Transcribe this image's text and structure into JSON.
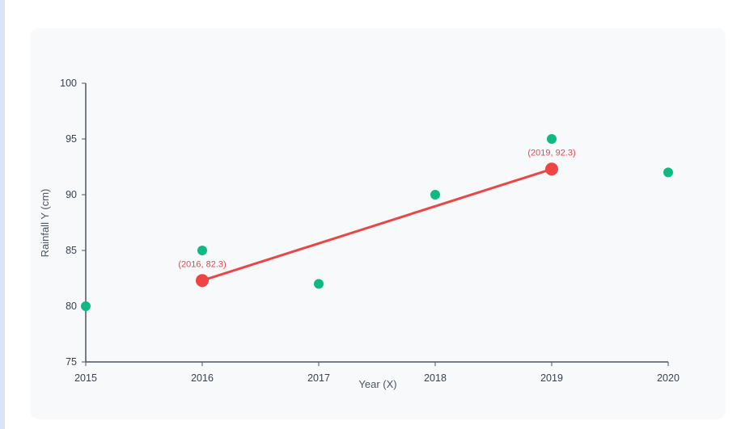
{
  "chart_data": {
    "type": "scatter",
    "title": "",
    "xlabel": "Year (X)",
    "ylabel": "Rainfall Y (cm)",
    "xlim": [
      2015,
      2020
    ],
    "ylim": [
      75,
      100
    ],
    "x_ticks": [
      "2015",
      "2016",
      "2017",
      "2018",
      "2019",
      "2020"
    ],
    "y_ticks": [
      "75",
      "80",
      "85",
      "90",
      "95",
      "100"
    ],
    "grid": false,
    "series": [
      {
        "type": "scatter",
        "color": "#10b981",
        "points": [
          {
            "x": 2015,
            "y": 80
          },
          {
            "x": 2016,
            "y": 85
          },
          {
            "x": 2017,
            "y": 82
          },
          {
            "x": 2018,
            "y": 90
          },
          {
            "x": 2019,
            "y": 95
          },
          {
            "x": 2020,
            "y": 92
          }
        ]
      },
      {
        "type": "line",
        "color": "#ef4444",
        "points": [
          {
            "x": 2016,
            "y": 82.3
          },
          {
            "x": 2019,
            "y": 92.3
          }
        ],
        "labels": [
          "(2016, 82.3)",
          "(2019, 92.3)"
        ]
      }
    ]
  }
}
